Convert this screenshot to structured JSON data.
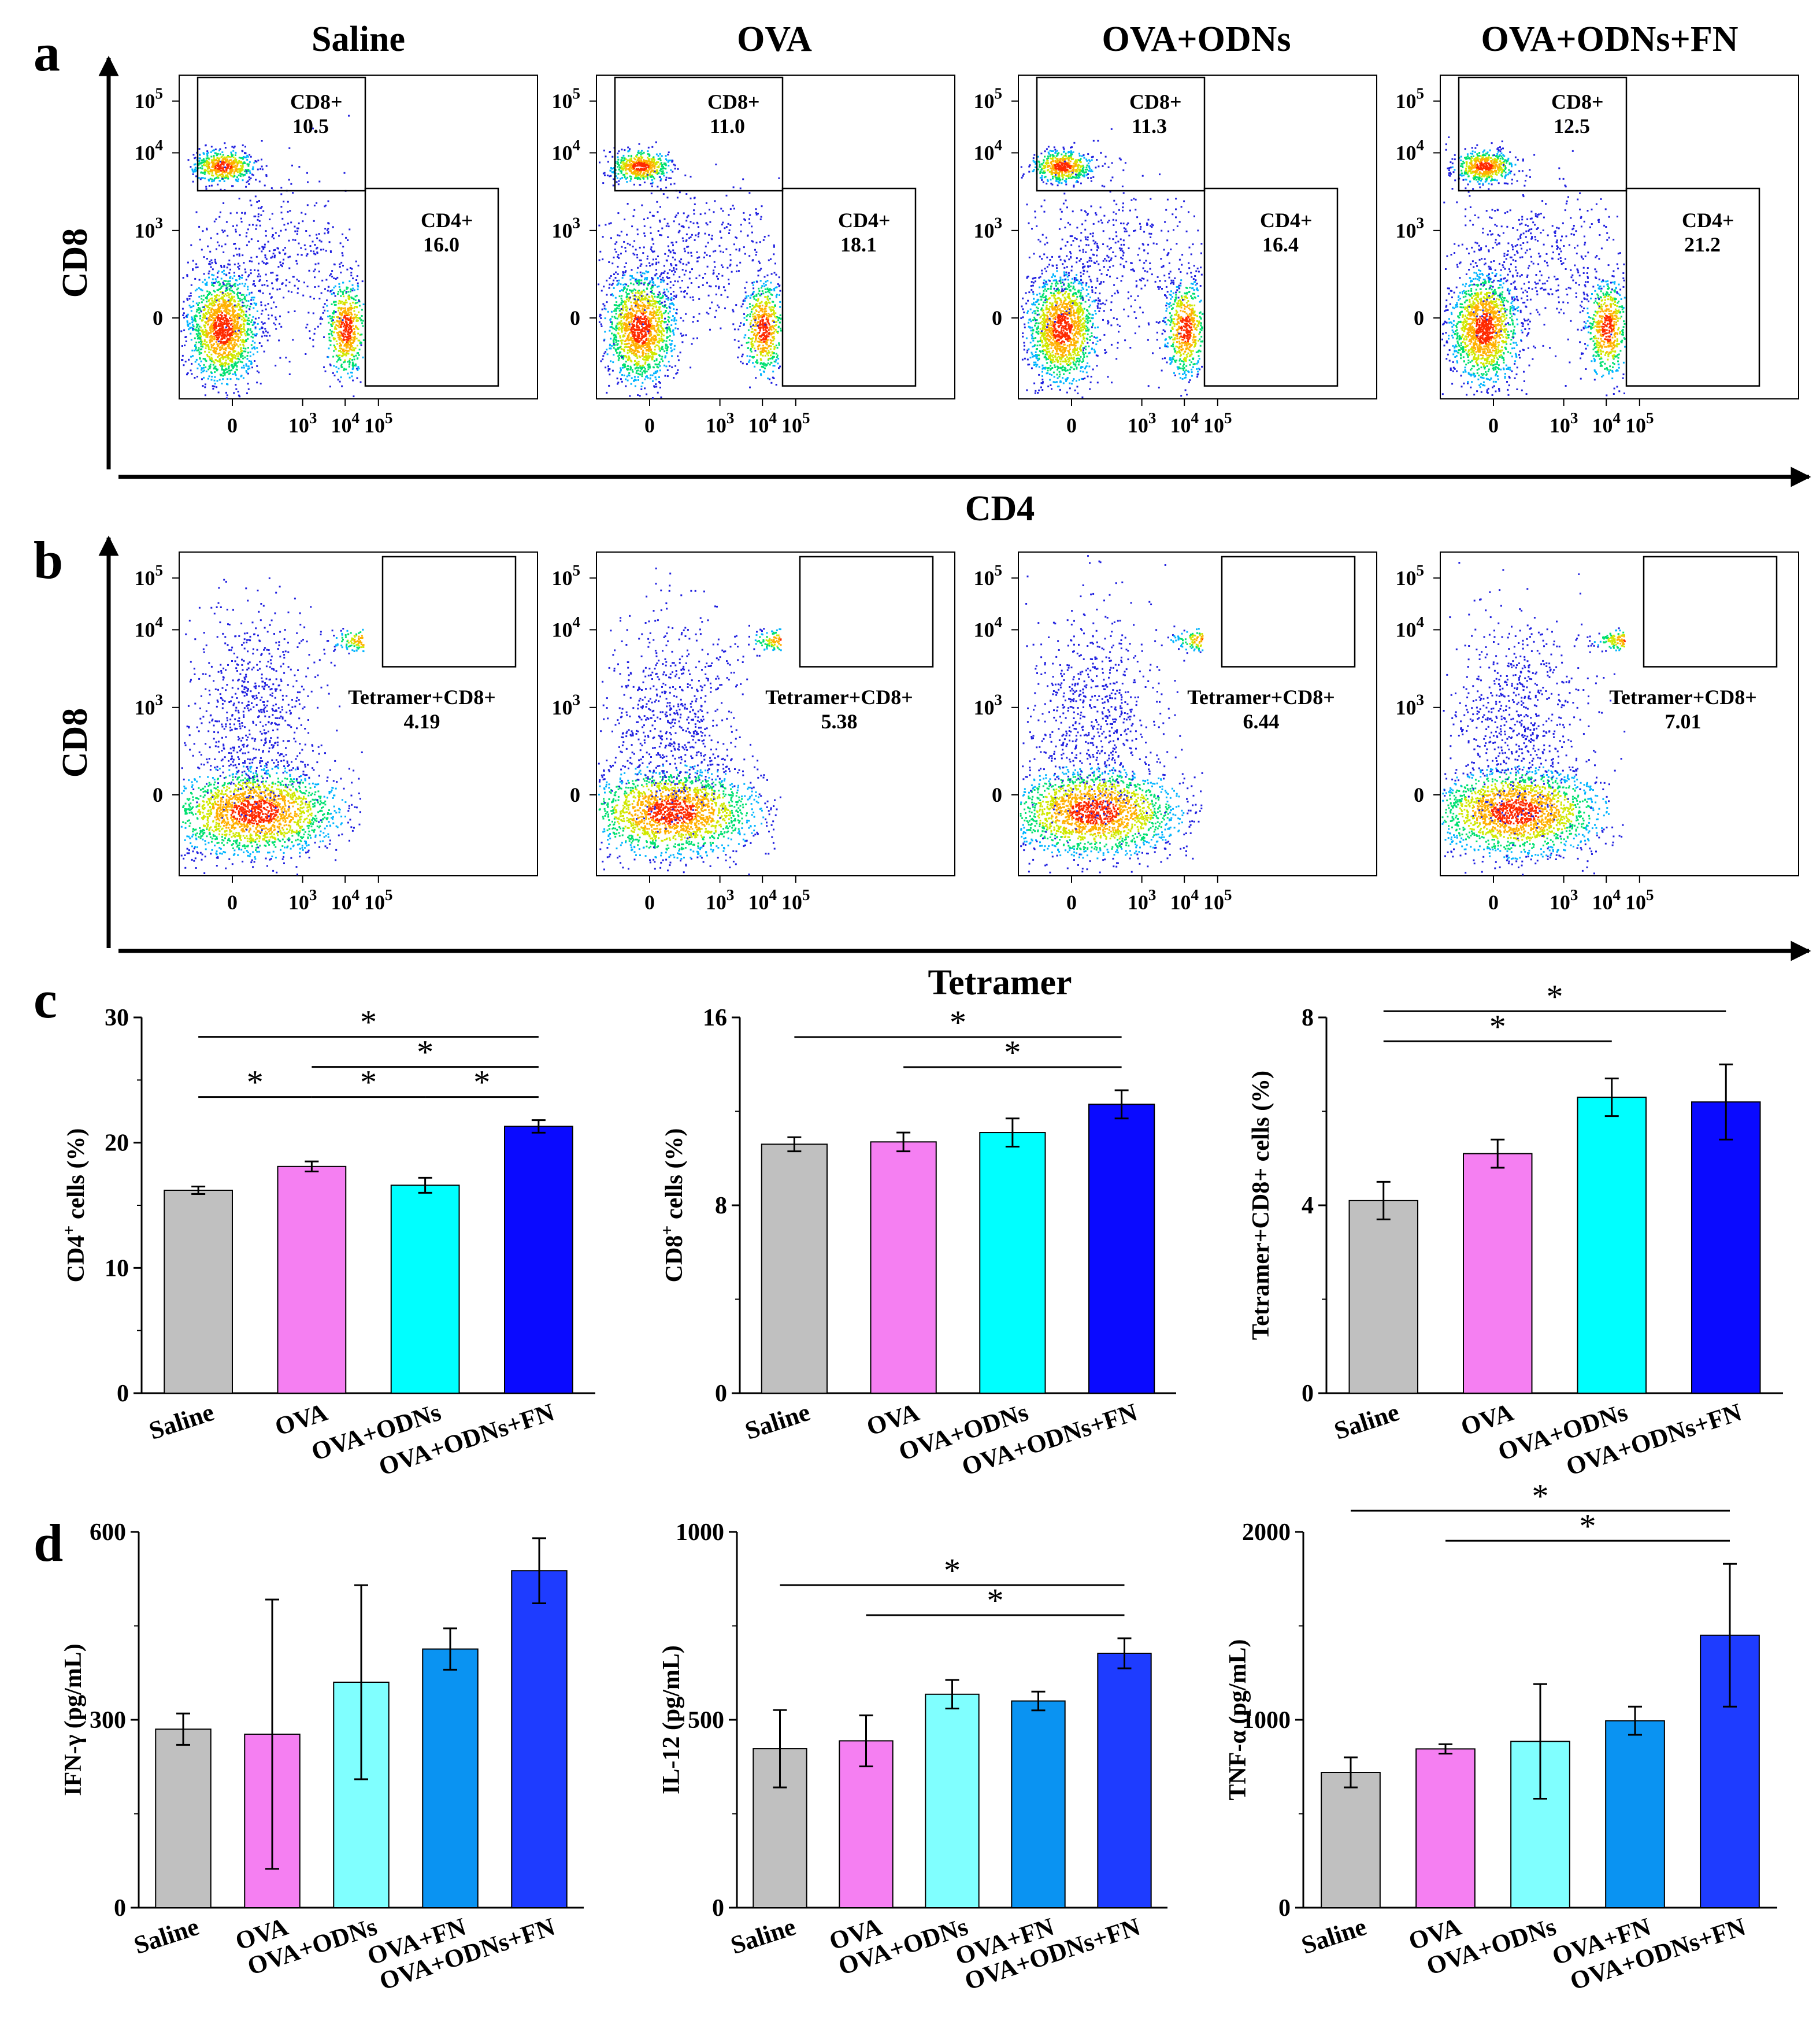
{
  "figure": {
    "panel_labels": {
      "a": "a",
      "b": "b",
      "c": "c",
      "d": "d"
    },
    "groups_ab": [
      "Saline",
      "OVA",
      "OVA+ODNs",
      "OVA+ODNs+FN"
    ],
    "colors": {
      "saline": "#c0c0c0",
      "ova": "#f57ff2",
      "ova_odns": "#00ffff",
      "ova_odns_fn_c": "#0a0aff",
      "ova_odns_light": "#80ffff",
      "ova_fn": "#0a93f2",
      "ova_odns_fn_d": "#1e3cff"
    }
  },
  "chart_data": [
    {
      "id": "a",
      "type": "scatter",
      "subtype": "flow-cytometry-density",
      "xlabel": "CD4",
      "ylabel": "CD8",
      "x_ticks": [
        "0",
        "10^3",
        "10^4",
        "10^5"
      ],
      "y_ticks": [
        "0",
        "10^3",
        "10^4",
        "10^5"
      ],
      "plots": [
        {
          "group": "Saline",
          "gates": [
            {
              "name": "CD8+",
              "value": "10.5"
            },
            {
              "name": "CD4+",
              "value": "16.0"
            }
          ]
        },
        {
          "group": "OVA",
          "gates": [
            {
              "name": "CD8+",
              "value": "11.0"
            },
            {
              "name": "CD4+",
              "value": "18.1"
            }
          ]
        },
        {
          "group": "OVA+ODNs",
          "gates": [
            {
              "name": "CD8+",
              "value": "11.3"
            },
            {
              "name": "CD4+",
              "value": "16.4"
            }
          ]
        },
        {
          "group": "OVA+ODNs+FN",
          "gates": [
            {
              "name": "CD8+",
              "value": "12.5"
            },
            {
              "name": "CD4+",
              "value": "21.2"
            }
          ]
        }
      ]
    },
    {
      "id": "b",
      "type": "scatter",
      "subtype": "flow-cytometry-density",
      "xlabel": "Tetramer",
      "ylabel": "CD8",
      "x_ticks": [
        "0",
        "10^3",
        "10^4",
        "10^5"
      ],
      "y_ticks": [
        "0",
        "10^3",
        "10^4",
        "10^5"
      ],
      "plots": [
        {
          "group": "Saline",
          "gates": [
            {
              "name": "Tetramer+CD8+",
              "value": "4.19"
            }
          ]
        },
        {
          "group": "OVA",
          "gates": [
            {
              "name": "Tetramer+CD8+",
              "value": "5.38"
            }
          ]
        },
        {
          "group": "OVA+ODNs",
          "gates": [
            {
              "name": "Tetramer+CD8+",
              "value": "6.44"
            }
          ]
        },
        {
          "group": "OVA+ODNs+FN",
          "gates": [
            {
              "name": "Tetramer+CD8+",
              "value": "7.01"
            }
          ]
        }
      ]
    },
    {
      "id": "c1",
      "type": "bar",
      "ylabel": "CD4+ cells (%)",
      "ylabel_main": "CD4",
      "ylabel_sup": "+",
      "ylabel_tail": " cells (%)",
      "categories": [
        "Saline",
        "OVA",
        "OVA+ODNs",
        "OVA+ODNs+FN"
      ],
      "values": [
        16.2,
        18.1,
        16.6,
        21.3
      ],
      "errors": [
        0.3,
        0.4,
        0.6,
        0.5
      ],
      "ylim": [
        0,
        30
      ],
      "yticks": [
        "0",
        "10",
        "20",
        "30"
      ],
      "significance": [
        {
          "from": 0,
          "to": 3,
          "label": "*",
          "level": 3
        },
        {
          "from": 1,
          "to": 3,
          "label": "*",
          "level": 2
        },
        {
          "from": 2,
          "to": 3,
          "label": "*",
          "level": 1
        },
        {
          "from": 0,
          "to": 1,
          "label": "*",
          "level": 1
        },
        {
          "from": 1,
          "to": 2,
          "label": "*",
          "level": 1
        }
      ]
    },
    {
      "id": "c2",
      "type": "bar",
      "ylabel": "CD8+ cells (%)",
      "ylabel_main": "CD8",
      "ylabel_sup": "+",
      "ylabel_tail": " cells (%)",
      "categories": [
        "Saline",
        "OVA",
        "OVA+ODNs",
        "OVA+ODNs+FN"
      ],
      "values": [
        10.6,
        10.7,
        11.1,
        12.3
      ],
      "errors": [
        0.3,
        0.4,
        0.6,
        0.6
      ],
      "ylim": [
        0,
        16
      ],
      "yticks": [
        "0",
        "8",
        "16"
      ],
      "significance": [
        {
          "from": 0,
          "to": 3,
          "label": "*",
          "level": 2
        },
        {
          "from": 1,
          "to": 3,
          "label": "*",
          "level": 1
        }
      ]
    },
    {
      "id": "c3",
      "type": "bar",
      "ylabel": "Tetramer+CD8+ cells (%)",
      "categories": [
        "Saline",
        "OVA",
        "OVA+ODNs",
        "OVA+ODNs+FN"
      ],
      "values": [
        4.1,
        5.1,
        6.3,
        6.2
      ],
      "errors": [
        0.4,
        0.3,
        0.4,
        0.8
      ],
      "ylim": [
        0,
        8
      ],
      "yticks": [
        "0",
        "4",
        "8"
      ],
      "significance": [
        {
          "from": 0,
          "to": 3,
          "label": "*",
          "level": 2
        },
        {
          "from": 0,
          "to": 2,
          "label": "*",
          "level": 1
        }
      ]
    },
    {
      "id": "d1",
      "type": "bar",
      "ylabel": "IFN-γ (pg/mL)",
      "categories": [
        "Saline",
        "OVA",
        "OVA+ODNs",
        "OVA+FN",
        "OVA+ODNs+FN"
      ],
      "values": [
        285,
        277,
        360,
        413,
        538
      ],
      "errors": [
        25,
        215,
        155,
        33,
        52
      ],
      "ylim": [
        0,
        600
      ],
      "yticks": [
        "0",
        "300",
        "600"
      ],
      "significance": []
    },
    {
      "id": "d2",
      "type": "bar",
      "ylabel": "IL-12 (pg/mL)",
      "categories": [
        "Saline",
        "OVA",
        "OVA+ODNs",
        "OVA+FN",
        "OVA+ODNs+FN"
      ],
      "values": [
        423,
        444,
        568,
        550,
        677
      ],
      "errors": [
        103,
        68,
        38,
        25,
        40
      ],
      "ylim": [
        0,
        1000
      ],
      "yticks": [
        "0",
        "500",
        "1000"
      ],
      "significance": [
        {
          "from": 0,
          "to": 4,
          "label": "*",
          "level": 2
        },
        {
          "from": 1,
          "to": 4,
          "label": "*",
          "level": 1
        }
      ]
    },
    {
      "id": "d3",
      "type": "bar",
      "ylabel": "TNF-α (pg/mL)",
      "categories": [
        "Saline",
        "OVA",
        "OVA+ODNs",
        "OVA+FN",
        "OVA+ODNs+FN"
      ],
      "values": [
        720,
        845,
        885,
        995,
        1450
      ],
      "errors": [
        80,
        25,
        305,
        75,
        380
      ],
      "ylim": [
        0,
        2000
      ],
      "yticks": [
        "0",
        "1000",
        "2000"
      ],
      "significance": [
        {
          "from": 0,
          "to": 4,
          "label": "*",
          "level": 2
        },
        {
          "from": 1,
          "to": 4,
          "label": "*",
          "level": 1
        }
      ]
    }
  ]
}
